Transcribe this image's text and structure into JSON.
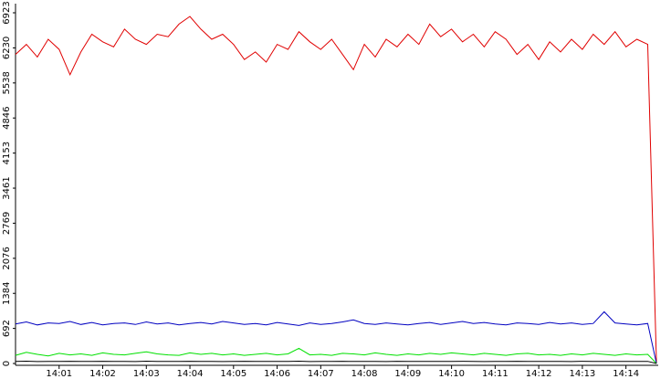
{
  "chart_data": {
    "type": "line",
    "x": [
      0,
      0.25,
      0.5,
      0.75,
      1,
      1.25,
      1.5,
      1.75,
      2,
      2.25,
      2.5,
      2.75,
      3,
      3.25,
      3.5,
      3.75,
      4,
      4.25,
      4.5,
      4.75,
      5,
      5.25,
      5.5,
      5.75,
      6,
      6.25,
      6.5,
      6.75,
      7,
      7.25,
      7.5,
      7.75,
      8,
      8.25,
      8.5,
      8.75,
      9,
      9.25,
      9.5,
      9.75,
      10,
      10.25,
      10.5,
      10.75,
      11,
      11.25,
      11.5,
      11.75,
      12,
      12.25,
      12.5,
      12.75,
      13,
      13.25,
      13.5,
      13.75,
      14,
      14.25,
      14.5,
      14.7
    ],
    "series": [
      {
        "color": "#e00000",
        "values": [
          6100,
          6300,
          6050,
          6400,
          6200,
          5700,
          6150,
          6500,
          6350,
          6250,
          6600,
          6400,
          6300,
          6500,
          6450,
          6700,
          6850,
          6600,
          6400,
          6500,
          6300,
          6000,
          6150,
          5950,
          6300,
          6200,
          6550,
          6350,
          6200,
          6400,
          6100,
          5800,
          6300,
          6050,
          6400,
          6250,
          6500,
          6300,
          6700,
          6450,
          6600,
          6350,
          6500,
          6250,
          6550,
          6400,
          6100,
          6300,
          6000,
          6350,
          6150,
          6400,
          6200,
          6500,
          6300,
          6550,
          6250,
          6400,
          6300,
          0
        ]
      },
      {
        "color": "#0000c0",
        "values": [
          780,
          820,
          760,
          800,
          790,
          830,
          770,
          810,
          760,
          790,
          800,
          770,
          820,
          780,
          800,
          760,
          790,
          810,
          780,
          830,
          800,
          770,
          790,
          760,
          810,
          780,
          750,
          800,
          770,
          790,
          820,
          860,
          790,
          770,
          800,
          780,
          760,
          790,
          810,
          770,
          800,
          830,
          790,
          810,
          780,
          760,
          800,
          790,
          770,
          810,
          780,
          800,
          770,
          790,
          1020,
          800,
          780,
          760,
          790,
          0
        ]
      },
      {
        "color": "#00e000",
        "values": [
          160,
          220,
          180,
          150,
          200,
          170,
          190,
          160,
          210,
          180,
          170,
          200,
          230,
          190,
          170,
          160,
          210,
          180,
          200,
          170,
          190,
          160,
          180,
          200,
          170,
          190,
          300,
          170,
          180,
          160,
          200,
          190,
          170,
          210,
          180,
          160,
          190,
          170,
          200,
          180,
          210,
          190,
          170,
          200,
          180,
          160,
          190,
          200,
          170,
          180,
          160,
          190,
          170,
          200,
          180,
          160,
          190,
          170,
          180,
          0
        ]
      },
      {
        "color": "#000000",
        "values": [
          40,
          45,
          38,
          42,
          40,
          44,
          39,
          41,
          43,
          40,
          42,
          38,
          45,
          40,
          41,
          39,
          44,
          40,
          42,
          38,
          41,
          43,
          40,
          39,
          42,
          40,
          45,
          38,
          41,
          40,
          43,
          39,
          42,
          40,
          38,
          44,
          41,
          40,
          42,
          39,
          40,
          43,
          41,
          38,
          42,
          40,
          44,
          39,
          41,
          40,
          42,
          38,
          43,
          40,
          41,
          39,
          42,
          40,
          41,
          0
        ]
      }
    ],
    "xlim": [
      0,
      14.74
    ],
    "ylim": [
      0,
      6923
    ],
    "yticks": [
      0,
      692,
      1384,
      2076,
      2769,
      3461,
      4153,
      4846,
      5538,
      6230,
      6923
    ],
    "xticks": [
      {
        "value": 1,
        "label": "14:01"
      },
      {
        "value": 2,
        "label": "14:02"
      },
      {
        "value": 3,
        "label": "14:03"
      },
      {
        "value": 4,
        "label": "14:04"
      },
      {
        "value": 5,
        "label": "14:05"
      },
      {
        "value": 6,
        "label": "14:06"
      },
      {
        "value": 7,
        "label": "14:07"
      },
      {
        "value": 8,
        "label": "14:08"
      },
      {
        "value": 9,
        "label": "14:09"
      },
      {
        "value": 10,
        "label": "14:10"
      },
      {
        "value": 11,
        "label": "14:11"
      },
      {
        "value": 12,
        "label": "14:12"
      },
      {
        "value": 13,
        "label": "14:13"
      },
      {
        "value": 14,
        "label": "14:14"
      }
    ]
  }
}
